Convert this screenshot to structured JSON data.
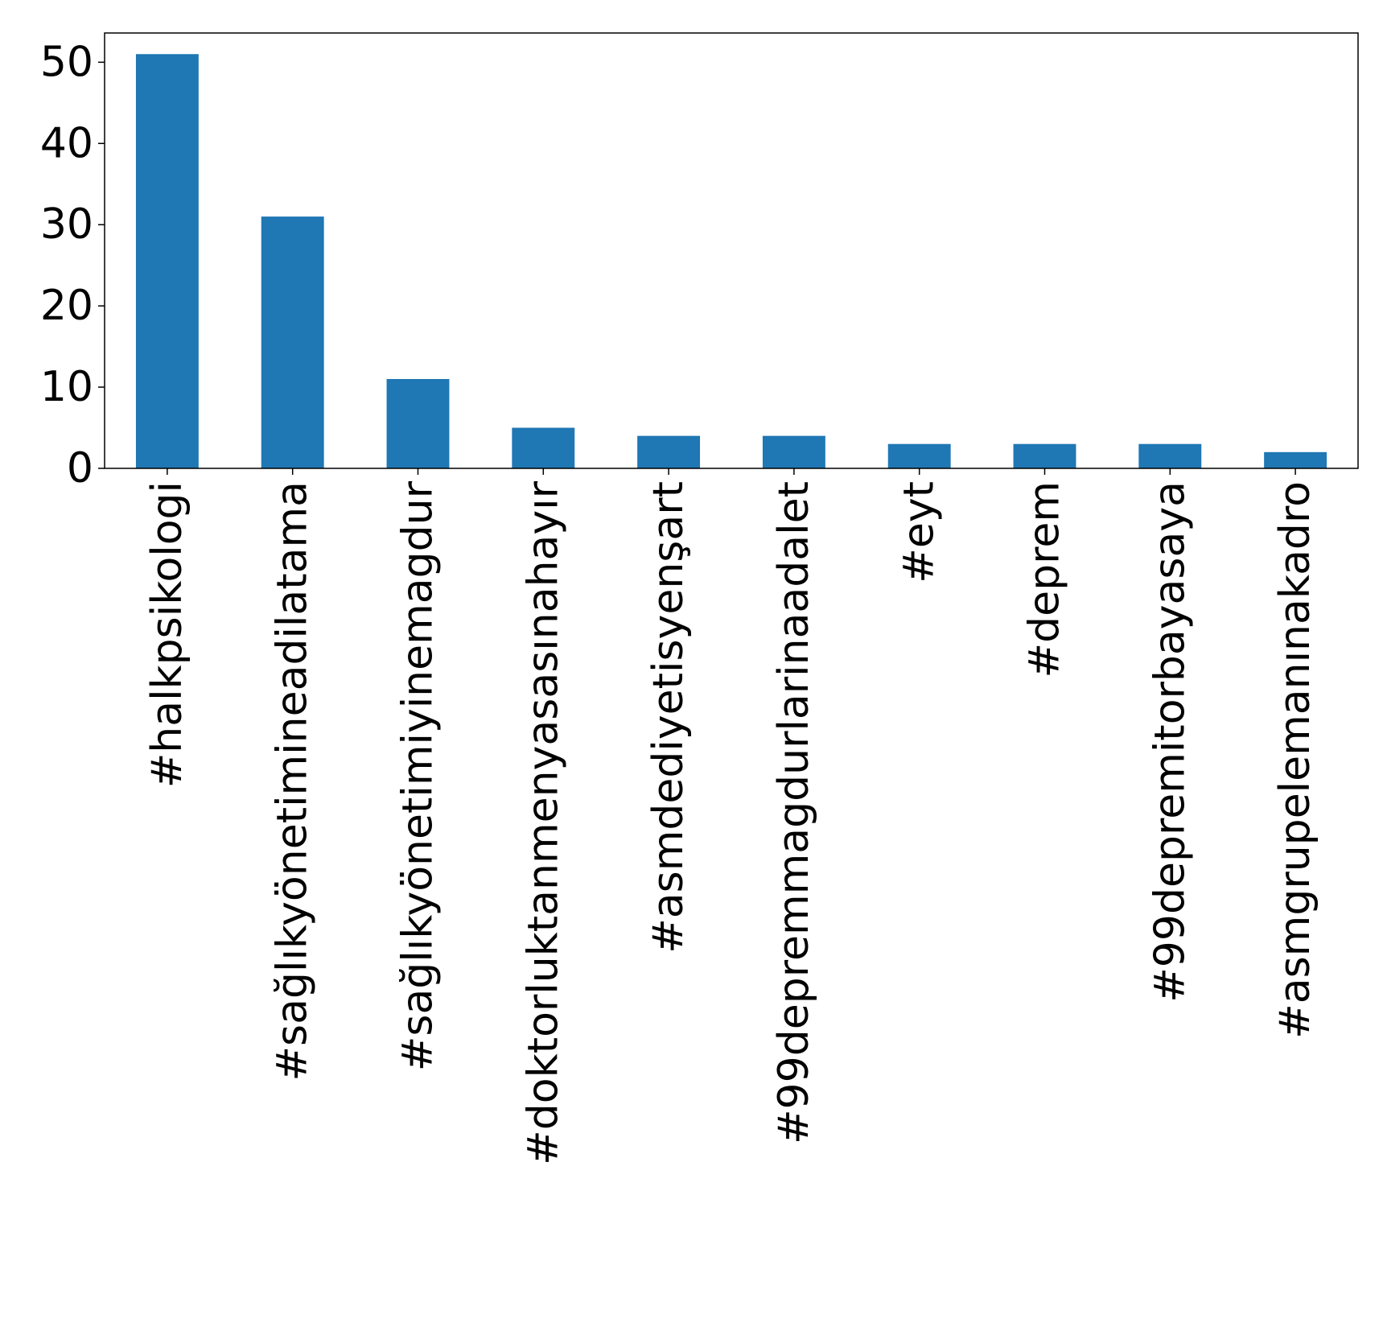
{
  "chart_data": {
    "type": "bar",
    "categories": [
      "#halkpsikologi",
      "#sağlıkyönetimineadilatama",
      "#sağlıkyönetimiyinemagdur",
      "#doktorluktanmenyasasınahayır",
      "#asmdediyetisyenşart",
      "#99depremmagdurlarinaadalet",
      "#eyt",
      "#deprem",
      "#99depremitorbayasaya",
      "#asmgrupelemanınakadro"
    ],
    "values": [
      51,
      31,
      11,
      5,
      4,
      4,
      3,
      3,
      3,
      2
    ],
    "ylim": [
      0,
      53.6
    ],
    "yticks": [
      0,
      10,
      20,
      30,
      40,
      50
    ],
    "title": "",
    "xlabel": "",
    "ylabel": "",
    "grid": false,
    "colors": {
      "bar": "#1f77b4",
      "axis": "#000000",
      "background": "#ffffff"
    }
  }
}
